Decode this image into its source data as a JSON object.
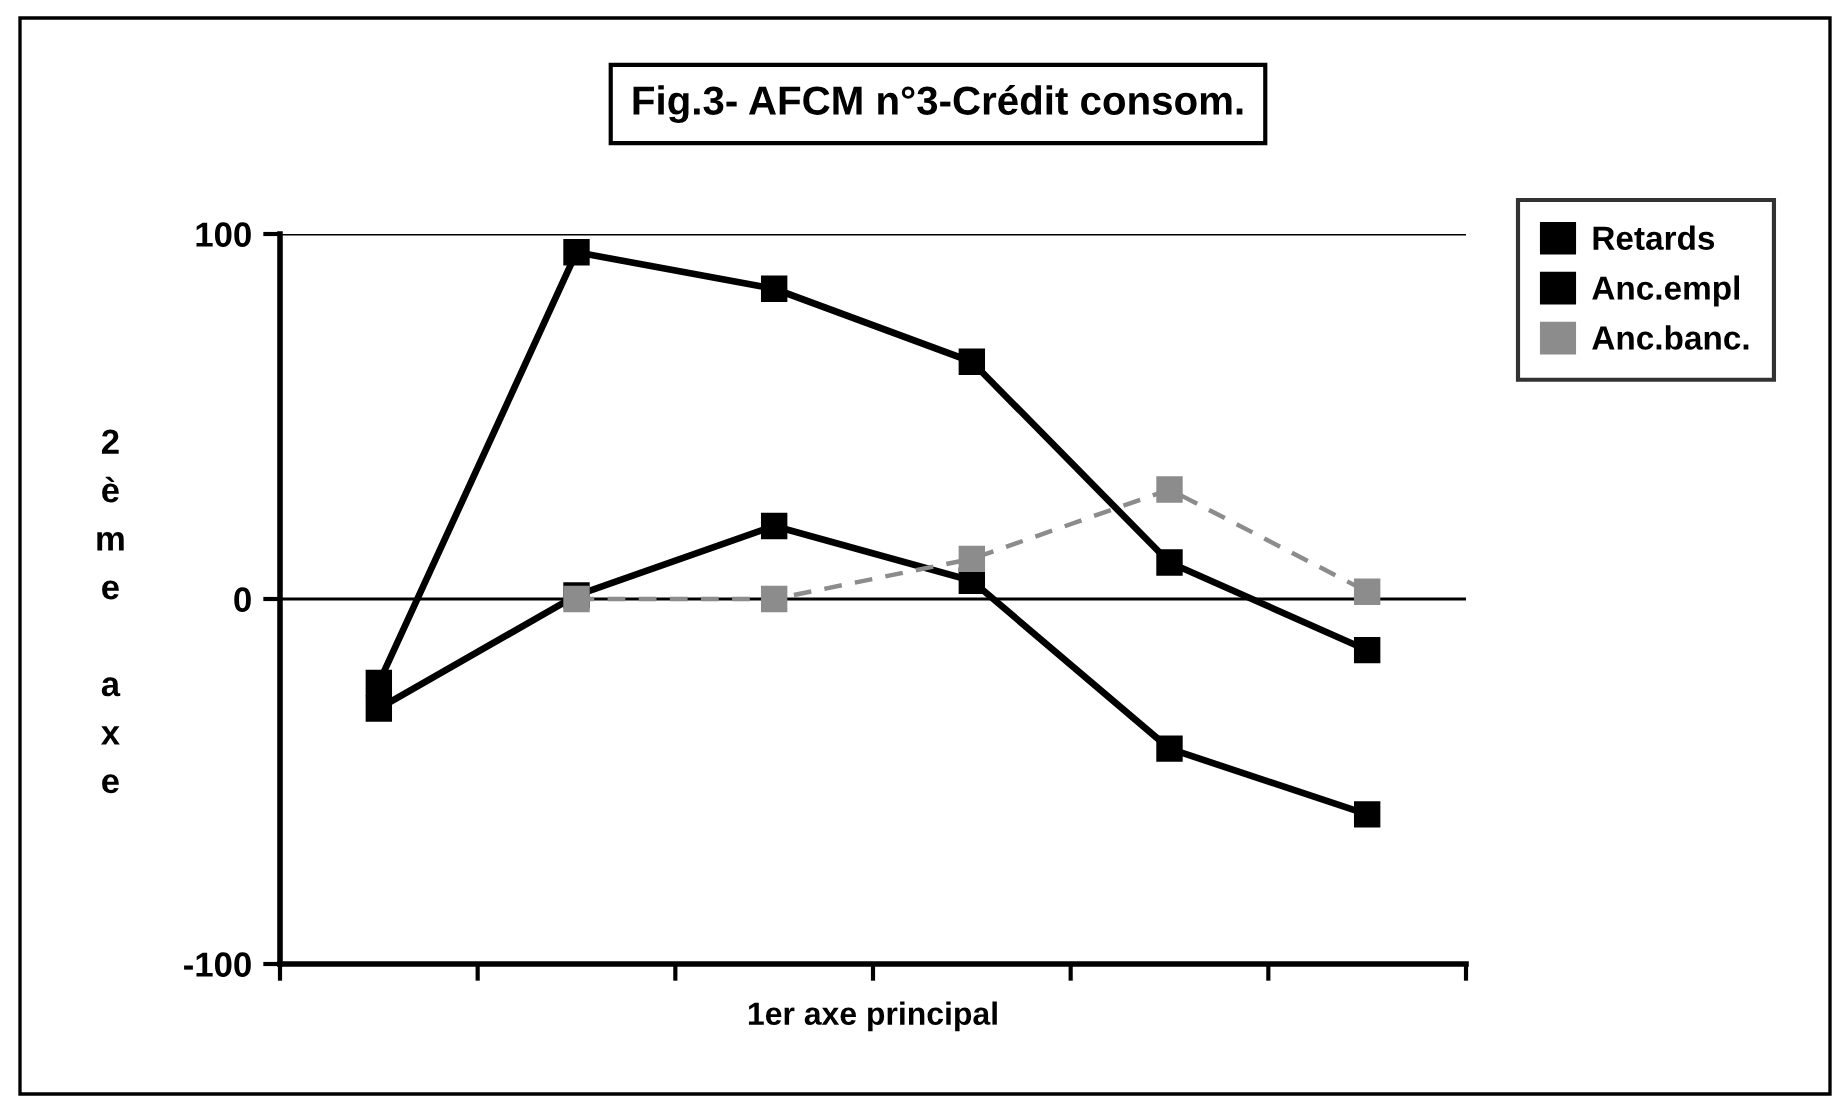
{
  "chart_data": {
    "type": "line",
    "title": "Fig.3- AFCM n°3-Crédit consom.",
    "xlabel": "1er axe principal",
    "ylabel": "2ème axe",
    "categories": [
      null,
      null,
      null,
      null,
      null,
      null
    ],
    "series": [
      {
        "name": "Retards",
        "color": "#000000",
        "values": [
          -23,
          95,
          85,
          65,
          10,
          -14
        ]
      },
      {
        "name": "Anc.empl",
        "color": "#000000",
        "values": [
          -30,
          1,
          20,
          5,
          -41,
          -59
        ]
      },
      {
        "name": "Anc.banc.",
        "color": "#8c8c8c",
        "line_style": "dashed",
        "values": [
          null,
          0,
          0,
          11,
          30,
          2
        ]
      }
    ],
    "ylim": [
      -100,
      100
    ],
    "yticks": [
      -100,
      0,
      100
    ],
    "grid": "y",
    "legend": "right",
    "marker": "square",
    "line_style": "solid"
  }
}
